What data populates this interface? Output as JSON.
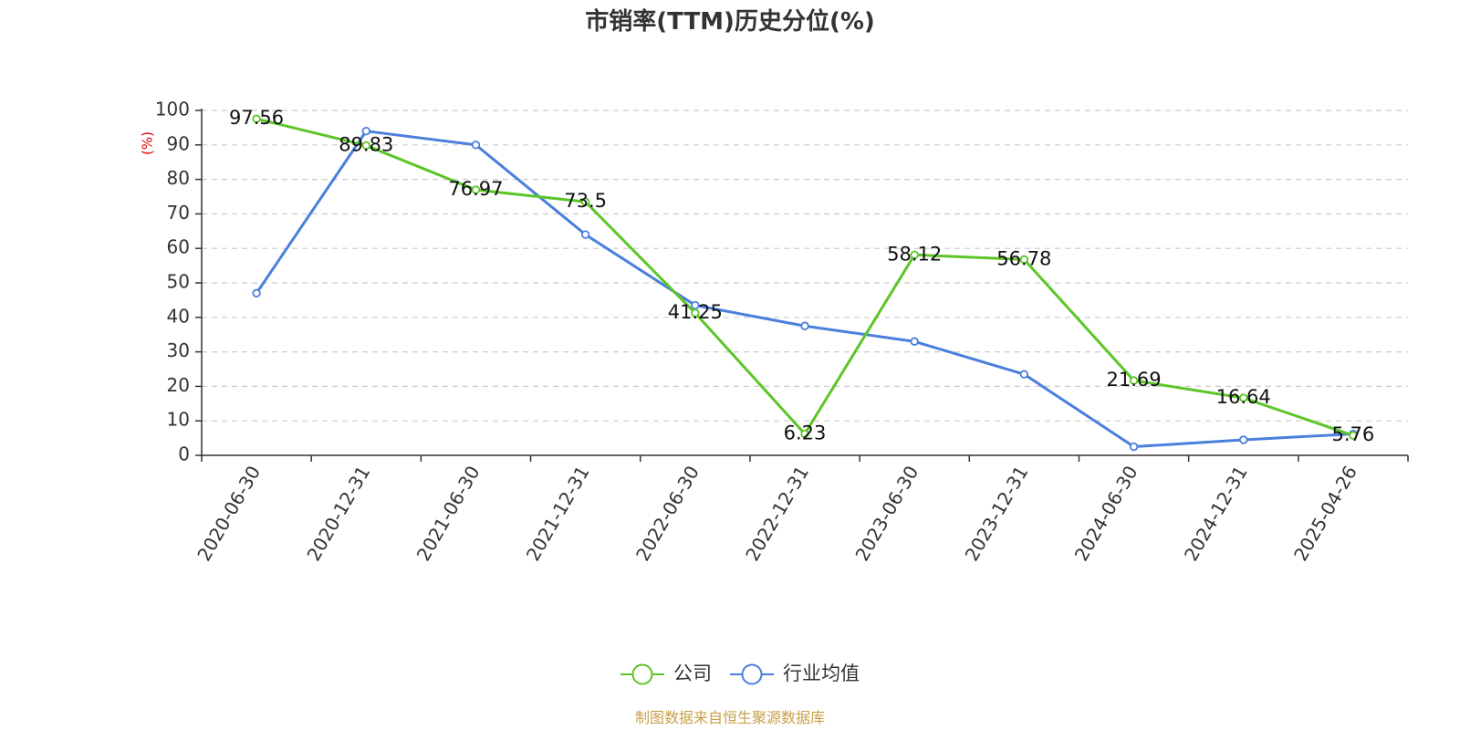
{
  "chart_data": {
    "type": "line",
    "title": "市销率(TTM)历史分位(%)",
    "ylabel": "(%)",
    "xlabel": "",
    "ylim": [
      0,
      100
    ],
    "yticks": [
      0,
      10,
      20,
      30,
      40,
      50,
      60,
      70,
      80,
      90,
      100
    ],
    "grid": true,
    "legend_position": "bottom",
    "categories": [
      "2020-06-30",
      "2020-12-31",
      "2021-06-30",
      "2021-12-31",
      "2022-06-30",
      "2022-12-31",
      "2023-06-30",
      "2023-12-31",
      "2024-06-30",
      "2024-12-31",
      "2025-04-26"
    ],
    "series": [
      {
        "name": "公司",
        "color": "#5cc527",
        "values": [
          97.56,
          89.83,
          76.97,
          73.5,
          41.25,
          6.23,
          58.12,
          56.78,
          21.69,
          16.64,
          5.76
        ],
        "labels": [
          "97.56",
          "89.83",
          "76.97",
          "73.5",
          "41.25",
          "6.23",
          "58.12",
          "56.78",
          "21.69",
          "16.64",
          "5.76"
        ]
      },
      {
        "name": "行业均值",
        "color": "#4a7fdc",
        "values": [
          47,
          94,
          90,
          64,
          43.5,
          37.5,
          33,
          23.5,
          2.5,
          4.5,
          6.2
        ]
      }
    ]
  },
  "source": "制图数据来自恒生聚源数据库"
}
